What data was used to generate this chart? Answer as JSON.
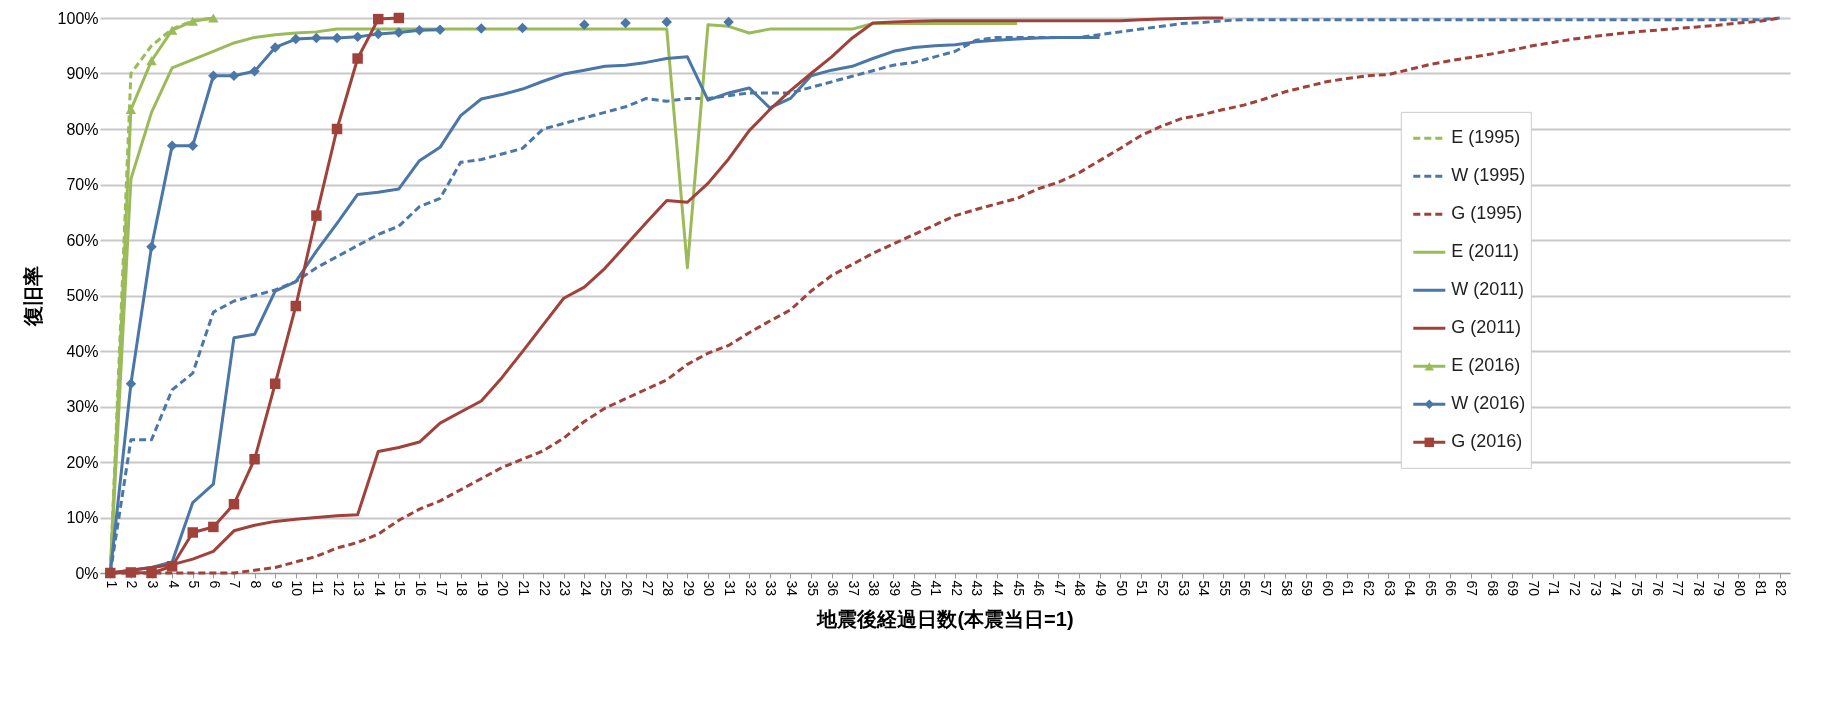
{
  "chart_data": {
    "type": "line",
    "xlabel": "地震後経過日数(本震当日=1)",
    "ylabel": "復旧率",
    "categories": [
      "1",
      "2",
      "3",
      "4",
      "5",
      "6",
      "7",
      "8",
      "9",
      "10",
      "11",
      "12",
      "13",
      "14",
      "15",
      "16",
      "17",
      "18",
      "19",
      "20",
      "21",
      "22",
      "23",
      "24",
      "25",
      "26",
      "27",
      "28",
      "29",
      "30",
      "31",
      "32",
      "33",
      "34",
      "35",
      "36",
      "37",
      "38",
      "39",
      "40",
      "41",
      "42",
      "43",
      "44",
      "45",
      "46",
      "47",
      "48",
      "49",
      "50",
      "51",
      "52",
      "53",
      "54",
      "55",
      "56",
      "57",
      "58",
      "59",
      "60",
      "61",
      "62",
      "63",
      "64",
      "65",
      "66",
      "67",
      "68",
      "69",
      "70",
      "71",
      "72",
      "73",
      "74",
      "75",
      "76",
      "77",
      "78",
      "79",
      "80",
      "81",
      "82"
    ],
    "ylim": [
      0,
      100
    ],
    "yticks": [
      {
        "value": 0,
        "label": "0%"
      },
      {
        "value": 10,
        "label": "10%"
      },
      {
        "value": 20,
        "label": "20%"
      },
      {
        "value": 30,
        "label": "30%"
      },
      {
        "value": 40,
        "label": "40%"
      },
      {
        "value": 50,
        "label": "50%"
      },
      {
        "value": 60,
        "label": "60%"
      },
      {
        "value": 70,
        "label": "70%"
      },
      {
        "value": 80,
        "label": "80%"
      },
      {
        "value": 90,
        "label": "90%"
      },
      {
        "value": 100,
        "label": "100%"
      }
    ],
    "grid": "y",
    "legend": "right",
    "series": [
      {
        "name": "E (1995)",
        "color": "#9bbb59",
        "line_style": "dashed",
        "marker": "none",
        "values": [
          0,
          90,
          95,
          98,
          99.5,
          100,
          null,
          null,
          null,
          null,
          null,
          null,
          null,
          null,
          null,
          null,
          null,
          null,
          null,
          null,
          null,
          null,
          null,
          null,
          null,
          null,
          null,
          null,
          null,
          null,
          null,
          null,
          null,
          null,
          null,
          null,
          null,
          null,
          null,
          null,
          null,
          null,
          null,
          null,
          null,
          null,
          null,
          null,
          null,
          null,
          null,
          null,
          null,
          null,
          null,
          null,
          null,
          null,
          null,
          null,
          null,
          null,
          null,
          null,
          null,
          null,
          null,
          null,
          null,
          null,
          null,
          null,
          null,
          null,
          null,
          null,
          null,
          null,
          null,
          null,
          null,
          null
        ]
      },
      {
        "name": "W (1995)",
        "color": "#4a76a8",
        "line_style": "dashed",
        "marker": "none",
        "values": [
          0,
          24,
          24,
          33,
          36,
          47,
          49,
          50,
          51,
          52.5,
          55,
          57,
          59,
          61,
          62.5,
          66,
          67.5,
          74,
          74.5,
          75.5,
          76.5,
          80,
          81,
          82,
          83,
          84,
          85.5,
          85,
          85.5,
          85.5,
          86,
          86.5,
          86.5,
          86.5,
          87.5,
          88.5,
          89.5,
          90.5,
          91.5,
          92,
          93,
          94,
          96,
          96.5,
          96.5,
          96.5,
          96.5,
          96.5,
          97,
          97.5,
          98,
          98.5,
          99,
          99.2,
          99.5,
          99.7,
          99.7,
          99.7,
          99.7,
          99.7,
          99.7,
          99.7,
          99.7,
          99.7,
          99.7,
          99.7,
          99.7,
          99.7,
          99.7,
          99.7,
          99.7,
          99.7,
          99.7,
          99.7,
          99.7,
          99.7,
          99.7,
          99.7,
          99.7,
          99.7,
          99.7,
          100
        ]
      },
      {
        "name": "G (1995)",
        "color": "#a0413a",
        "line_style": "dashed",
        "marker": "none",
        "values": [
          0,
          0,
          0,
          0,
          0,
          0,
          0,
          0.5,
          1,
          2,
          3,
          4.5,
          5.5,
          7,
          9.5,
          11.5,
          13,
          15,
          17,
          19,
          20.5,
          22,
          24.3,
          27.3,
          29.7,
          31.4,
          33.1,
          34.8,
          37.6,
          39.6,
          41,
          43.3,
          45.4,
          47.4,
          50.8,
          53.6,
          55.6,
          57.6,
          59.3,
          61,
          62.7,
          64.4,
          65.5,
          66.5,
          67.5,
          69.2,
          70.4,
          72.1,
          74.3,
          76.5,
          78.8,
          80.5,
          81.9,
          82.6,
          83.5,
          84.3,
          85.4,
          86.7,
          87.6,
          88.5,
          89.1,
          89.6,
          89.8,
          90.7,
          91.6,
          92.3,
          92.9,
          93.5,
          94.2,
          95,
          95.6,
          96.2,
          96.7,
          97.1,
          97.5,
          97.8,
          98.1,
          98.4,
          98.7,
          99.1,
          99.4,
          100
        ]
      },
      {
        "name": "E (2011)",
        "color": "#9bbb59",
        "line_style": "solid",
        "marker": "none",
        "values": [
          0,
          71,
          83,
          91,
          92.5,
          94,
          95.5,
          96.5,
          97,
          97.3,
          97.5,
          98,
          98,
          98,
          98,
          98,
          98,
          98,
          98,
          98,
          98,
          98,
          98,
          98,
          98,
          98,
          98,
          98,
          55,
          98.8,
          98.5,
          97.3,
          98,
          98,
          98,
          98,
          98,
          99,
          99,
          99,
          99,
          99,
          99,
          99,
          99,
          null,
          null,
          null,
          null,
          null,
          null,
          null,
          null,
          null,
          null,
          null,
          null,
          null,
          null,
          null,
          null,
          null,
          null,
          null,
          null,
          null,
          null,
          null,
          null,
          null,
          null,
          null,
          null,
          null,
          null,
          null,
          null,
          null,
          null,
          null,
          null,
          null
        ]
      },
      {
        "name": "W (2011)",
        "color": "#4a76a8",
        "line_style": "solid",
        "marker": "none",
        "values": [
          0,
          0.5,
          1,
          2,
          12.7,
          16,
          42.4,
          43,
          50.8,
          52.5,
          58,
          63,
          68.2,
          68.6,
          69.2,
          74.3,
          76.7,
          82.4,
          85.4,
          86.2,
          87.2,
          88.6,
          89.9,
          90.6,
          91.3,
          91.5,
          92,
          92.7,
          93,
          85.2,
          86.5,
          87.4,
          83.8,
          85.5,
          89.6,
          90.6,
          91.3,
          92.7,
          94,
          94.7,
          95,
          95.2,
          95.7,
          96,
          96.2,
          96.4,
          96.5,
          96.5,
          96.5,
          null,
          null,
          null,
          null,
          null,
          null,
          null,
          null,
          null,
          null,
          null,
          null,
          null,
          null,
          null,
          null,
          null,
          null,
          null,
          null,
          null,
          null,
          null,
          null,
          null,
          null,
          null,
          null,
          null,
          null,
          null,
          null,
          null
        ]
      },
      {
        "name": "G (2011)",
        "color": "#a0413a",
        "line_style": "solid",
        "marker": "none",
        "values": [
          0,
          0.5,
          1,
          1.5,
          2.5,
          3.9,
          7.6,
          8.6,
          9.3,
          9.7,
          10,
          10.3,
          10.5,
          21.9,
          22.6,
          23.6,
          27,
          29,
          31,
          35.2,
          39.9,
          44.7,
          49.5,
          51.5,
          54.9,
          59,
          63.1,
          67.1,
          66.8,
          70.2,
          74.6,
          79.7,
          83.5,
          86.9,
          90,
          93,
          96.4,
          99.1,
          99.3,
          99.4,
          99.5,
          99.5,
          99.5,
          99.5,
          99.5,
          99.5,
          99.5,
          99.5,
          99.5,
          99.5,
          99.7,
          99.8,
          99.9,
          100,
          100,
          null,
          null,
          null,
          null,
          null,
          null,
          null,
          null,
          null,
          null,
          null,
          null,
          null,
          null,
          null,
          null,
          null,
          null,
          null,
          null,
          null,
          null,
          null,
          null,
          null,
          null,
          null
        ]
      },
      {
        "name": "E (2016)",
        "color": "#9bbb59",
        "line_style": "solid",
        "marker": "triangle",
        "values": [
          0,
          83.5,
          92.3,
          97.8,
          99.4,
          100,
          null,
          null,
          null,
          null,
          null,
          null,
          null,
          null,
          null,
          null,
          null,
          null,
          null,
          null,
          null,
          null,
          null,
          null,
          null,
          null,
          null,
          null,
          null,
          null,
          null,
          null,
          null,
          null,
          null,
          null,
          null,
          null,
          null,
          null,
          null,
          null,
          null,
          null,
          null,
          null,
          null,
          null,
          null,
          null,
          null,
          null,
          null,
          null,
          null,
          null,
          null,
          null,
          null,
          null,
          null,
          null,
          null,
          null,
          null,
          null,
          null,
          null,
          null,
          null,
          null,
          null,
          null,
          null,
          null,
          null,
          null,
          null,
          null,
          null,
          null,
          null
        ]
      },
      {
        "name": "W (2016)",
        "color": "#4a76a8",
        "line_style": "solid",
        "marker": "diamond",
        "values": [
          0,
          34.1,
          58.8,
          77,
          77,
          89.6,
          89.6,
          90.4,
          94.7,
          96.2,
          96.4,
          96.4,
          96.6,
          97.1,
          97.4,
          97.8,
          97.9,
          null,
          98.1,
          null,
          98.2,
          null,
          null,
          98.8,
          null,
          99.1,
          null,
          99.3,
          null,
          null,
          99.3,
          null,
          null,
          null,
          null,
          null,
          null,
          null,
          null,
          null,
          null,
          null,
          null,
          null,
          null,
          null,
          null,
          null,
          null,
          null,
          null,
          null,
          null,
          null,
          null,
          null,
          null,
          null,
          null,
          null,
          null,
          null,
          null,
          null,
          null,
          null,
          null,
          null,
          null,
          null,
          null,
          null,
          null,
          null,
          null,
          null,
          null,
          null,
          null,
          null,
          null,
          null
        ]
      },
      {
        "name": "G (2016)",
        "color": "#a0413a",
        "line_style": "solid",
        "marker": "square",
        "values": [
          0,
          0.1,
          0,
          1.2,
          7.3,
          8.3,
          12.4,
          20.5,
          34.1,
          48.1,
          64.4,
          80,
          92.7,
          99.8,
          100,
          null,
          null,
          null,
          null,
          null,
          null,
          null,
          null,
          null,
          null,
          null,
          null,
          null,
          null,
          null,
          null,
          null,
          null,
          null,
          null,
          null,
          null,
          null,
          null,
          null,
          null,
          null,
          null,
          null,
          null,
          null,
          null,
          null,
          null,
          null,
          null,
          null,
          null,
          null,
          null,
          null,
          null,
          null,
          null,
          null,
          null,
          null,
          null,
          null,
          null,
          null,
          null,
          null,
          null,
          null,
          null,
          null,
          null,
          null,
          null,
          null,
          null,
          null,
          null,
          null,
          null,
          null
        ]
      }
    ]
  }
}
